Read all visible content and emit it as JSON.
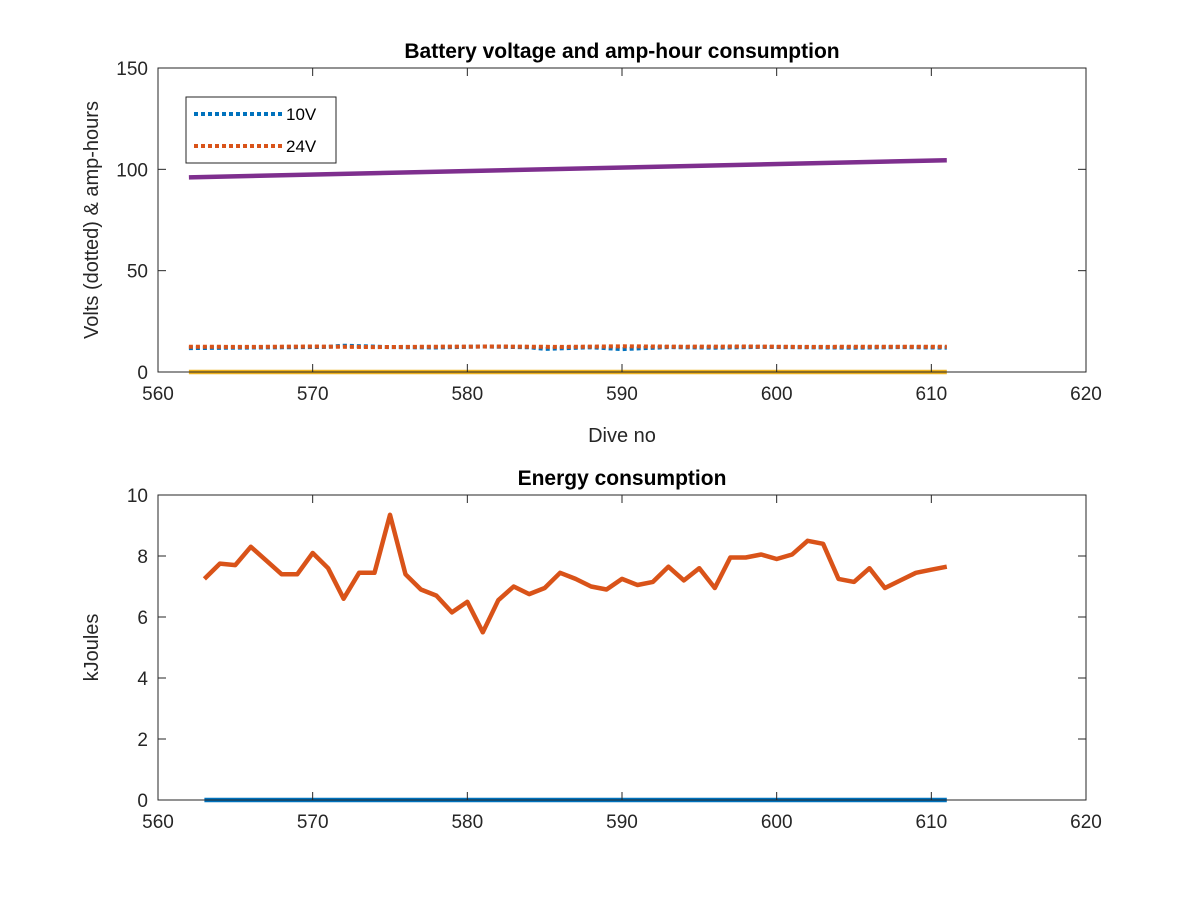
{
  "chart_data": [
    {
      "type": "line",
      "title": "Battery voltage and amp-hour consumption",
      "xlabel": "Dive no",
      "ylabel": "Volts (dotted) & amp-hours",
      "xlim": [
        560,
        620
      ],
      "ylim": [
        0,
        150
      ],
      "xticks": [
        560,
        570,
        580,
        590,
        600,
        610,
        620
      ],
      "yticks": [
        0,
        50,
        100,
        150
      ],
      "grid": false,
      "legend": {
        "placement": "top-left",
        "entries": [
          "10V",
          "24V"
        ]
      },
      "series": [
        {
          "name": "10V",
          "style": "dotted",
          "color": "#0072BD",
          "x": [
            562,
            565,
            568,
            571,
            572,
            575,
            578,
            581,
            584,
            585,
            588,
            590,
            593,
            596,
            599,
            602,
            605,
            608,
            611
          ],
          "values": [
            11.8,
            12.0,
            12.2,
            12.4,
            13.0,
            12.3,
            12.1,
            12.6,
            12.2,
            11.4,
            12.2,
            11.3,
            12.3,
            12.0,
            12.4,
            12.2,
            12.0,
            12.3,
            12.0
          ]
        },
        {
          "name": "24V",
          "style": "dotted",
          "color": "#D95319",
          "x": [
            562,
            566,
            570,
            574,
            578,
            582,
            586,
            590,
            594,
            598,
            602,
            606,
            611
          ],
          "values": [
            12.5,
            12.4,
            12.6,
            12.3,
            12.5,
            12.6,
            12.4,
            12.7,
            12.5,
            12.6,
            12.4,
            12.5,
            12.5
          ]
        },
        {
          "style": "solid",
          "color": "#EDB120",
          "x": [
            562,
            611
          ],
          "values": [
            0,
            0
          ]
        },
        {
          "style": "solid",
          "color": "#7E2F8E",
          "x": [
            562,
            611
          ],
          "values": [
            96,
            104.5
          ]
        }
      ]
    },
    {
      "type": "line",
      "title": "Energy consumption",
      "xlabel": "",
      "ylabel": "kJoules",
      "xlim": [
        560,
        620
      ],
      "ylim": [
        0,
        10
      ],
      "xticks": [
        560,
        570,
        580,
        590,
        600,
        610,
        620
      ],
      "yticks": [
        0,
        2,
        4,
        6,
        8,
        10
      ],
      "grid": false,
      "series": [
        {
          "style": "solid",
          "color": "#D95319",
          "x": [
            563,
            564,
            565,
            566,
            567,
            568,
            569,
            570,
            571,
            572,
            573,
            574,
            575,
            576,
            577,
            578,
            579,
            580,
            581,
            582,
            583,
            584,
            585,
            586,
            587,
            588,
            589,
            590,
            591,
            592,
            593,
            594,
            595,
            596,
            597,
            598,
            599,
            600,
            601,
            602,
            603,
            604,
            605,
            606,
            607,
            608,
            609,
            610,
            611
          ],
          "values": [
            7.25,
            7.75,
            7.7,
            8.3,
            7.85,
            7.4,
            7.4,
            8.1,
            7.6,
            6.6,
            7.45,
            7.45,
            9.35,
            7.4,
            6.9,
            6.7,
            6.15,
            6.5,
            5.5,
            6.55,
            7.0,
            6.75,
            6.95,
            7.45,
            7.25,
            7.0,
            6.9,
            7.25,
            7.05,
            7.15,
            7.65,
            7.2,
            7.6,
            6.95,
            7.95,
            7.95,
            8.05,
            7.9,
            8.05,
            8.5,
            8.4,
            7.25,
            7.15,
            7.6,
            6.95,
            7.2,
            7.45,
            7.55,
            7.65
          ]
        },
        {
          "style": "solid",
          "color": "#0072BD",
          "x": [
            563,
            611
          ],
          "values": [
            0,
            0
          ]
        }
      ]
    }
  ]
}
